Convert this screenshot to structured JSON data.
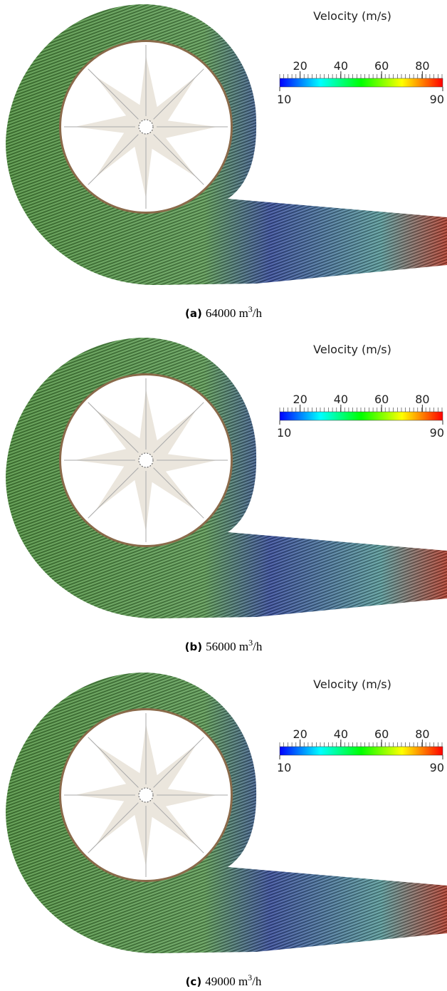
{
  "colorbar": {
    "title": "Velocity (m/s)",
    "min": 10,
    "max": 90,
    "ticks": [
      20,
      40,
      60,
      80
    ]
  },
  "panels": [
    {
      "label": "(a)",
      "text": "64000 m",
      "sup": "3",
      "suffix": "/h"
    },
    {
      "label": "(b)",
      "text": "56000 m",
      "sup": "3",
      "suffix": "/h"
    },
    {
      "label": "(c)",
      "text": "49000 m",
      "sup": "3",
      "suffix": "/h"
    }
  ]
}
